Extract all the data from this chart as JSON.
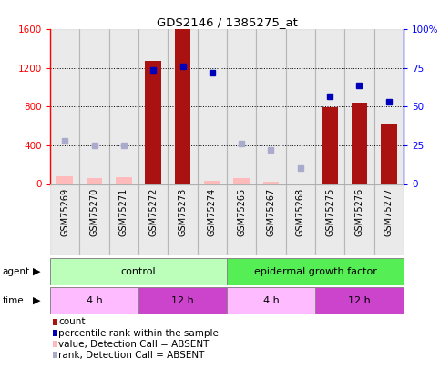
{
  "title": "GDS2146 / 1385275_at",
  "samples": [
    "GSM75269",
    "GSM75270",
    "GSM75271",
    "GSM75272",
    "GSM75273",
    "GSM75274",
    "GSM75265",
    "GSM75267",
    "GSM75268",
    "GSM75275",
    "GSM75276",
    "GSM75277"
  ],
  "bar_present": [
    0,
    0,
    0,
    1270,
    1600,
    0,
    0,
    0,
    0,
    795,
    840,
    625
  ],
  "bar_absent": [
    80,
    60,
    70,
    0,
    0,
    30,
    65,
    25,
    0,
    0,
    0,
    0
  ],
  "rank_present": [
    0,
    0,
    0,
    74,
    76,
    72,
    0,
    0,
    0,
    57,
    64,
    53
  ],
  "rank_absent": [
    28,
    25,
    25,
    0,
    0,
    0,
    26,
    22,
    10,
    0,
    0,
    0
  ],
  "bar_color_present": "#aa1111",
  "bar_color_absent": "#ffbbbb",
  "rank_color_present": "#0000bb",
  "rank_color_absent": "#aaaacc",
  "ylim_left": [
    0,
    1600
  ],
  "ylim_right": [
    0,
    100
  ],
  "yticks_left": [
    0,
    400,
    800,
    1200,
    1600
  ],
  "yticks_right": [
    0,
    25,
    50,
    75,
    100
  ],
  "ytick_labels_right": [
    "0",
    "25",
    "50",
    "75",
    "100%"
  ],
  "agent_groups": [
    {
      "label": "control",
      "start": 0,
      "end": 6,
      "color": "#bbffbb"
    },
    {
      "label": "epidermal growth factor",
      "start": 6,
      "end": 12,
      "color": "#55ee55"
    }
  ],
  "time_groups": [
    {
      "label": "4 h",
      "start": 0,
      "end": 3,
      "color": "#ffbbff"
    },
    {
      "label": "12 h",
      "start": 3,
      "end": 6,
      "color": "#cc44cc"
    },
    {
      "label": "4 h",
      "start": 6,
      "end": 9,
      "color": "#ffbbff"
    },
    {
      "label": "12 h",
      "start": 9,
      "end": 12,
      "color": "#cc44cc"
    }
  ],
  "legend_items": [
    {
      "label": "count",
      "color": "#aa1111"
    },
    {
      "label": "percentile rank within the sample",
      "color": "#0000bb"
    },
    {
      "label": "value, Detection Call = ABSENT",
      "color": "#ffbbbb"
    },
    {
      "label": "rank, Detection Call = ABSENT",
      "color": "#aaaacc"
    }
  ],
  "background_color": "#ffffff",
  "col_bg_color": "#cccccc",
  "grid_color": "#000000"
}
